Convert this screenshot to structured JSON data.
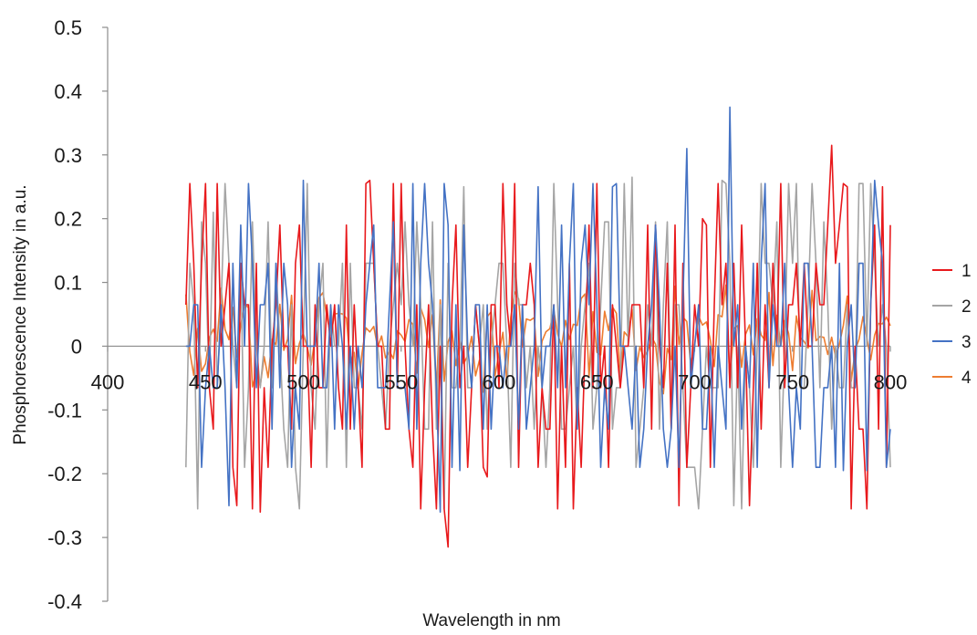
{
  "chart_data": {
    "type": "line",
    "title": "",
    "xlabel": "Wavelength in nm",
    "ylabel": "Phosphorescence Intensity in a.u.",
    "xlim": [
      400,
      800
    ],
    "ylim": [
      -0.4,
      0.5
    ],
    "xticks": [
      400,
      450,
      500,
      550,
      600,
      650,
      700,
      750,
      800
    ],
    "yticks": [
      0.5,
      0.4,
      0.3,
      0.2,
      0.1,
      0,
      -0.1,
      -0.2,
      -0.3,
      -0.4
    ],
    "xtick_labels": [
      "400",
      "450",
      "500",
      "550",
      "600",
      "650",
      "700",
      "750",
      "800"
    ],
    "ytick_labels": [
      "0.5",
      "0.4",
      "0.3",
      "0.2",
      "0.1",
      "0",
      "-0.1",
      "-0.2",
      "-0.3",
      "-0.4"
    ],
    "grid": false,
    "legend_position": "right",
    "x_step_nm": 2,
    "series": [
      {
        "name": "1",
        "color": "#e8191c",
        "data_range": [
          440,
          800
        ],
        "extremes": [
          [
            443,
            0.255
          ],
          [
            451,
            0.255
          ],
          [
            457,
            0.255
          ],
          [
            466,
            -0.25
          ],
          [
            474,
            -0.255
          ],
          [
            479,
            -0.26
          ],
          [
            535,
            0.26
          ],
          [
            560,
            -0.255
          ],
          [
            575,
            -0.315
          ],
          [
            594,
            -0.205
          ],
          [
            625,
            -0.13
          ],
          [
            657,
            -0.19
          ],
          [
            693,
            -0.25
          ],
          [
            704,
            0.2
          ],
          [
            728,
            -0.25
          ],
          [
            744,
            0.255
          ],
          [
            770,
            0.315
          ],
          [
            778,
            0.25
          ],
          [
            796,
            0.25
          ]
        ]
      },
      {
        "name": "2",
        "color": "#a5a5a5",
        "data_range": [
          440,
          800
        ],
        "extremes": [
          [
            446,
            -0.255
          ],
          [
            454,
            0.21
          ],
          [
            490,
            -0.13
          ],
          [
            512,
            -0.19
          ],
          [
            552,
            0.195
          ],
          [
            583,
            0.25
          ],
          [
            603,
            0.13
          ],
          [
            629,
            0.255
          ],
          [
            668,
            0.265
          ],
          [
            698,
            -0.19
          ],
          [
            703,
            -0.255
          ],
          [
            715,
            0.26
          ],
          [
            721,
            -0.25
          ],
          [
            748,
            0.255
          ],
          [
            760,
            0.255
          ],
          [
            790,
            0.255
          ]
        ]
      },
      {
        "name": "3",
        "color": "#4472c4",
        "data_range": [
          440,
          800
        ],
        "extremes": [
          [
            462,
            -0.25
          ],
          [
            501,
            0.26
          ],
          [
            546,
            0.195
          ],
          [
            571,
            -0.26
          ],
          [
            580,
            -0.195
          ],
          [
            621,
            0.25
          ],
          [
            658,
            0.25
          ],
          [
            672,
            -0.19
          ],
          [
            697,
            0.31
          ],
          [
            719,
            0.375
          ],
          [
            732,
            -0.19
          ],
          [
            762,
            -0.19
          ],
          [
            777,
            -0.195
          ],
          [
            788,
            -0.195
          ],
          [
            792,
            0.26
          ]
        ]
      },
      {
        "name": "4",
        "color": "#ed7d31",
        "data_range": [
          440,
          800
        ],
        "amplitude_range": [
          -0.1,
          0.1
        ]
      }
    ]
  }
}
